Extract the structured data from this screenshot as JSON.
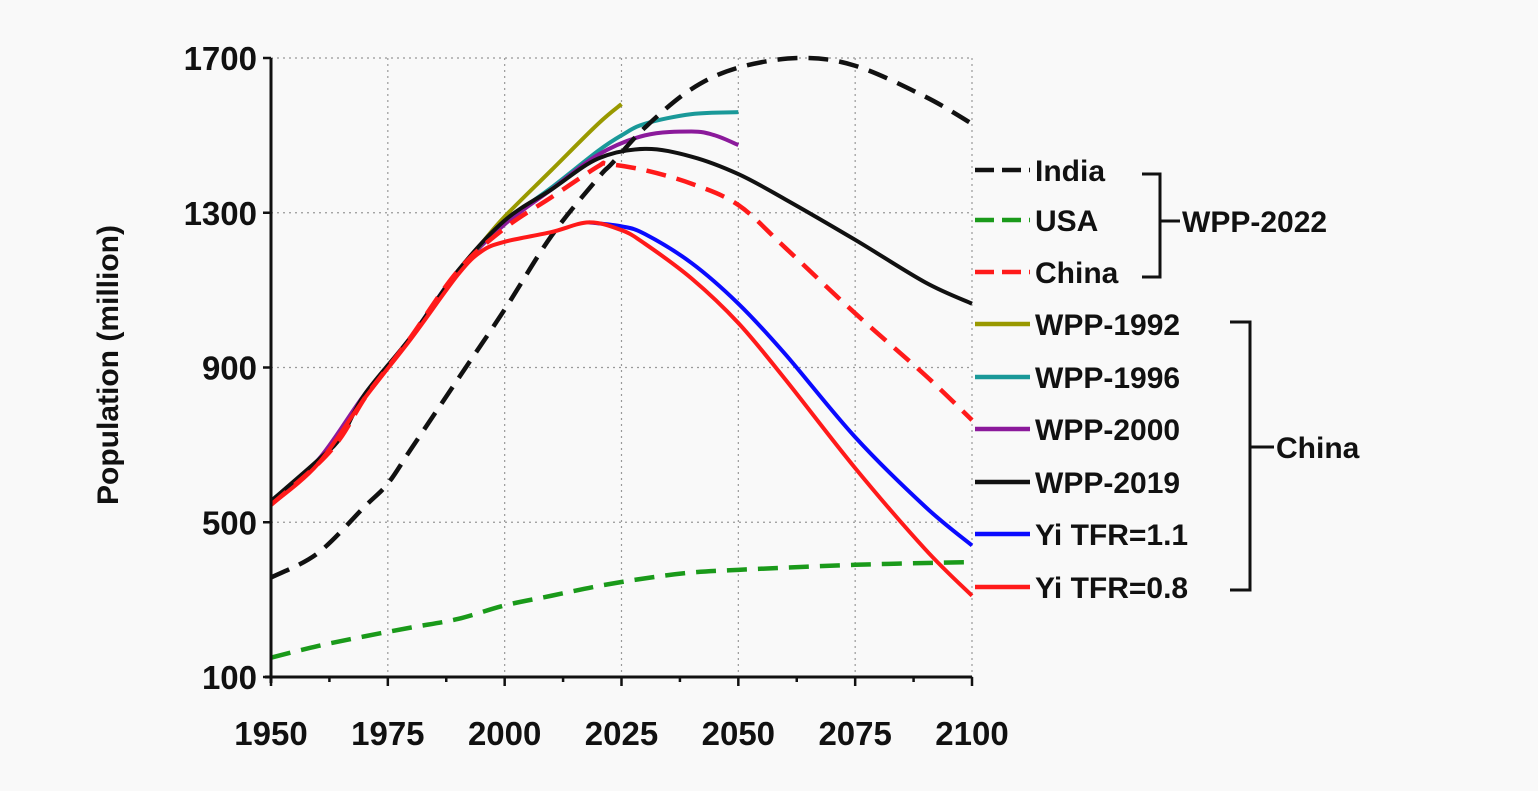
{
  "chart_data": {
    "type": "line",
    "title": "",
    "xlabel": "",
    "ylabel": "Population (million)",
    "xlim": [
      1950,
      2100
    ],
    "ylim": [
      100,
      1700
    ],
    "xticks": [
      1950,
      1975,
      2000,
      2025,
      2050,
      2075,
      2100
    ],
    "yticks": [
      100,
      500,
      900,
      1300,
      1700
    ],
    "grid": true,
    "legend_placement": "right",
    "series": [
      {
        "name": "India",
        "color": "#111111",
        "dash": true,
        "group": "WPP-2022",
        "x": [
          1950,
          1960,
          1970,
          1975,
          1980,
          1990,
          2000,
          2010,
          2020,
          2023,
          2030,
          2040,
          2050,
          2063,
          2075,
          2090,
          2100
        ],
        "y": [
          357,
          420,
          540,
          600,
          690,
          870,
          1050,
          1240,
          1390,
          1428,
          1520,
          1620,
          1675,
          1700,
          1680,
          1600,
          1530
        ]
      },
      {
        "name": "USA",
        "color": "#1a9a1a",
        "dash": true,
        "group": "WPP-2022",
        "x": [
          1950,
          1960,
          1970,
          1980,
          1990,
          2000,
          2010,
          2020,
          2030,
          2040,
          2050,
          2075,
          2100
        ],
        "y": [
          150,
          180,
          205,
          228,
          250,
          285,
          310,
          335,
          355,
          370,
          377,
          390,
          397
        ]
      },
      {
        "name": "China",
        "color": "#ff1a1a",
        "dash": true,
        "group": "WPP-2022",
        "x": [
          1950,
          1960,
          1965,
          1970,
          1975,
          1980,
          1990,
          2000,
          2010,
          2020,
          2022,
          2030,
          2040,
          2050,
          2060,
          2075,
          2090,
          2100
        ],
        "y": [
          545,
          650,
          720,
          820,
          900,
          980,
          1150,
          1260,
          1340,
          1420,
          1426,
          1410,
          1375,
          1320,
          1210,
          1040,
          880,
          764
        ]
      },
      {
        "name": "WPP-1992",
        "color": "#999900",
        "dash": false,
        "group": "China",
        "x": [
          1990,
          1995,
          2000,
          2010,
          2020,
          2025
        ],
        "y": [
          1150,
          1220,
          1290,
          1410,
          1530,
          1581
        ]
      },
      {
        "name": "WPP-1996",
        "color": "#1a9999",
        "dash": false,
        "group": "China",
        "x": [
          1990,
          2000,
          2010,
          2020,
          2025,
          2030,
          2040,
          2050
        ],
        "y": [
          1150,
          1275,
          1365,
          1460,
          1500,
          1530,
          1555,
          1560
        ]
      },
      {
        "name": "WPP-2000",
        "color": "#8b1a9b",
        "dash": false,
        "group": "China",
        "x": [
          1950,
          1960,
          1970,
          1980,
          1990,
          2000,
          2010,
          2020,
          2030,
          2040,
          2045,
          2050
        ],
        "y": [
          555,
          660,
          830,
          980,
          1150,
          1270,
          1360,
          1450,
          1500,
          1510,
          1500,
          1475
        ]
      },
      {
        "name": "WPP-2019",
        "color": "#111111",
        "dash": false,
        "group": "China",
        "x": [
          1950,
          1960,
          1965,
          1970,
          1980,
          1990,
          2000,
          2010,
          2020,
          2030,
          2040,
          2050,
          2060,
          2075,
          2090,
          2100
        ],
        "y": [
          555,
          660,
          720,
          830,
          980,
          1150,
          1280,
          1360,
          1440,
          1465,
          1445,
          1400,
          1335,
          1230,
          1120,
          1065
        ]
      },
      {
        "name": "Yi TFR=1.1",
        "color": "#0a0aff",
        "dash": false,
        "group": "China",
        "x": [
          2018,
          2025,
          2030,
          2040,
          2050,
          2060,
          2075,
          2090,
          2100
        ],
        "y": [
          1275,
          1265,
          1245,
          1170,
          1065,
          935,
          720,
          540,
          440
        ]
      },
      {
        "name": "Yi TFR=0.8",
        "color": "#ff1a1a",
        "dash": false,
        "group": "China",
        "x": [
          1950,
          1960,
          1970,
          1980,
          1990,
          1995,
          2000,
          2010,
          2018,
          2025,
          2030,
          2040,
          2050,
          2060,
          2075,
          2090,
          2100
        ],
        "y": [
          545,
          650,
          820,
          975,
          1140,
          1200,
          1225,
          1250,
          1275,
          1255,
          1220,
          1130,
          1015,
          870,
          640,
          430,
          310
        ]
      }
    ],
    "legend_groups": [
      {
        "label": "WPP-2022"
      },
      {
        "label": "China"
      }
    ]
  }
}
